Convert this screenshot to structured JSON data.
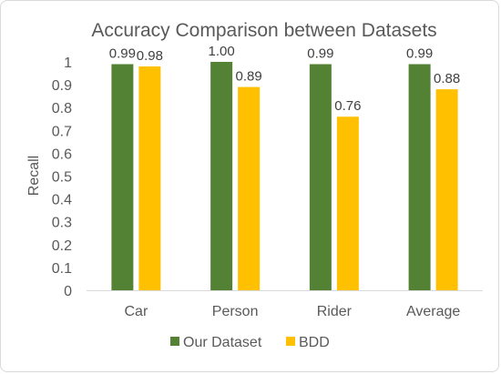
{
  "chart_data": {
    "type": "bar",
    "title": "Accuracy Comparison between Datasets",
    "xlabel": "",
    "ylabel": "Recall",
    "categories": [
      "Car",
      "Person",
      "Rider",
      "Average"
    ],
    "series": [
      {
        "name": "Our Dataset",
        "color": "#548235",
        "values": [
          0.99,
          1.0,
          0.99,
          0.99
        ],
        "labels": [
          "0.99",
          "1.00",
          "0.99",
          "0.99"
        ]
      },
      {
        "name": "BDD",
        "color": "#FFC000",
        "values": [
          0.98,
          0.89,
          0.76,
          0.88
        ],
        "labels": [
          "0.98",
          "0.89",
          "0.76",
          "0.88"
        ]
      }
    ],
    "ylim": [
      0,
      1
    ],
    "yticks": [
      "0",
      "0.1",
      "0.2",
      "0.3",
      "0.4",
      "0.5",
      "0.6",
      "0.7",
      "0.8",
      "0.9",
      "1"
    ],
    "grid": false,
    "legend_position": "bottom"
  }
}
